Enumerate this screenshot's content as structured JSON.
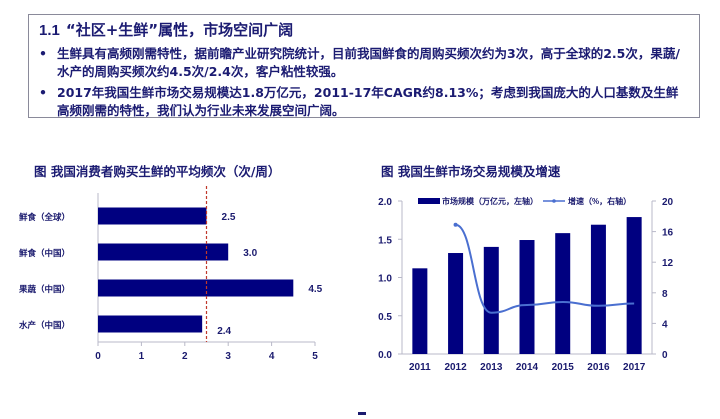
{
  "section": {
    "number": "1.1",
    "title": "“社区+生鲜”属性，市场空间广阔",
    "bullets": [
      "生鲜具有高频刚需特性，据前瞻产业研究院统计，目前我国鲜食的周购买频次约为3次，高于全球的2.5次，果蔬/水产的周购买频次约4.5次/2.4次，客户粘性较强。",
      "2017年我国生鲜市场交易规模达1.8万亿元，2011-17年CAGR约8.13%；考虑到我国庞大的人口基数及生鲜高频刚需的特性，我们认为行业未来发展空间广阔。"
    ]
  },
  "chart_data": [
    {
      "type": "bar",
      "orientation": "horizontal",
      "title": "图  我国消费者购买生鲜的平均频次（次/周）",
      "categories": [
        "鲜食（全球）",
        "鲜食（中国）",
        "果蔬（中国）",
        "水产（中国）"
      ],
      "values": [
        2.5,
        3.0,
        4.5,
        2.4
      ],
      "value_labels": [
        "2.5",
        "3.0",
        "4.5",
        "2.4"
      ],
      "xlim": [
        0,
        5
      ],
      "xticks": [
        "0",
        "1",
        "2",
        "3",
        "4",
        "5"
      ],
      "reference_line": 2.5,
      "bar_color": "#000080",
      "reference_line_color": "#c0392b"
    },
    {
      "type": "bar+line",
      "title": "图  我国生鲜市场交易规模及增速",
      "categories": [
        "2011",
        "2012",
        "2013",
        "2014",
        "2015",
        "2016",
        "2017"
      ],
      "series": [
        {
          "name": "市场规模（万亿元，左轴）",
          "type": "bar",
          "axis": "left",
          "values": [
            1.12,
            1.32,
            1.4,
            1.49,
            1.58,
            1.69,
            1.79
          ],
          "color": "#000080"
        },
        {
          "name": "增速（%，右轴）",
          "type": "line",
          "axis": "right",
          "values": [
            null,
            16.9,
            5.4,
            6.4,
            6.8,
            6.3,
            6.6
          ],
          "color": "#4a6fd0"
        }
      ],
      "ylim_left": [
        0,
        2.0
      ],
      "yticks_left": [
        "0.0",
        "0.5",
        "1.0",
        "1.5",
        "2.0"
      ],
      "ylim_right": [
        0,
        20
      ],
      "yticks_right": [
        "0",
        "4",
        "8",
        "12",
        "16",
        "20"
      ],
      "legend_position": "top"
    }
  ]
}
